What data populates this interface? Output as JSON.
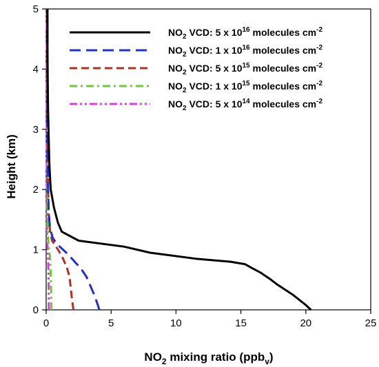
{
  "chart_data": {
    "type": "line",
    "xlabel": {
      "base": "NO",
      "sub": "2",
      "rest": " mixing ratio (ppb",
      "unit_sub": "v",
      "close": ")"
    },
    "ylabel": "Height (km)",
    "xlim": [
      0,
      25
    ],
    "ylim": [
      0,
      5
    ],
    "xticks": [
      0,
      5,
      10,
      15,
      20,
      25
    ],
    "yticks": [
      0,
      1,
      2,
      3,
      4,
      5
    ],
    "grid": false,
    "legend_position": "top-right",
    "series": [
      {
        "name": {
          "prefix": "NO",
          "sub": "2",
          "mid": " VCD: 5 x 10",
          "exp": "16",
          "suffix": " molecules cm",
          "suffix_exp": "-2"
        },
        "color": "#000000",
        "dash": "solid",
        "x": [
          20.4,
          20.0,
          19.0,
          17.8,
          17.2,
          16.5,
          15.8,
          15.3,
          14.2,
          11.5,
          8.0,
          6.0,
          2.5,
          1.2,
          0.9,
          0.6,
          0.35,
          0.25,
          0.2,
          0.15,
          0.12,
          0.1,
          0.1
        ],
        "y": [
          0.0,
          0.08,
          0.25,
          0.42,
          0.52,
          0.62,
          0.7,
          0.76,
          0.8,
          0.85,
          0.95,
          1.05,
          1.15,
          1.3,
          1.45,
          1.7,
          2.0,
          2.4,
          2.8,
          3.3,
          3.8,
          4.4,
          5.0
        ]
      },
      {
        "name": {
          "prefix": "NO",
          "sub": "2",
          "mid": " VCD: 1 x 10",
          "exp": "16",
          "suffix": " molecules cm",
          "suffix_exp": "-2"
        },
        "color": "#1f2fd6",
        "dash": "long-dash",
        "x": [
          4.1,
          3.95,
          3.7,
          3.4,
          3.1,
          2.7,
          2.2,
          1.7,
          1.2,
          0.8,
          0.5,
          0.3,
          0.2,
          0.15,
          0.1,
          0.1
        ],
        "y": [
          0.0,
          0.1,
          0.25,
          0.4,
          0.55,
          0.68,
          0.8,
          0.92,
          1.02,
          1.1,
          1.2,
          1.35,
          1.6,
          2.0,
          3.0,
          5.0
        ]
      },
      {
        "name": {
          "prefix": "NO",
          "sub": "2",
          "mid": " VCD: 5 x 10",
          "exp": "15",
          "suffix": " molecules cm",
          "suffix_exp": "-2"
        },
        "color": "#b1301f",
        "dash": "dash",
        "x": [
          2.1,
          2.0,
          1.9,
          1.8,
          1.6,
          1.3,
          1.0,
          0.7,
          0.45,
          0.3,
          0.2,
          0.15,
          0.1,
          0.1
        ],
        "y": [
          0.0,
          0.15,
          0.35,
          0.55,
          0.7,
          0.85,
          0.97,
          1.07,
          1.15,
          1.3,
          1.6,
          2.0,
          3.0,
          5.0
        ]
      },
      {
        "name": {
          "prefix": "NO",
          "sub": "2",
          "mid": " VCD: 1 x 10",
          "exp": "15",
          "suffix": " molecules cm",
          "suffix_exp": "-2"
        },
        "color": "#5fd12a",
        "dash": "dash-dot",
        "x": [
          0.4,
          0.39,
          0.37,
          0.35,
          0.32,
          0.28,
          0.22,
          0.16,
          0.12,
          0.1,
          0.1
        ],
        "y": [
          0.0,
          0.2,
          0.4,
          0.6,
          0.75,
          0.9,
          1.02,
          1.15,
          1.5,
          2.5,
          5.0
        ]
      },
      {
        "name": {
          "prefix": "NO",
          "sub": "2",
          "mid": " VCD: 5 x 10",
          "exp": "14",
          "suffix": " molecules cm",
          "suffix_exp": "-2"
        },
        "color": "#e03ae8",
        "dash": "dash-dot-dot",
        "x": [
          0.2,
          0.2,
          0.19,
          0.18,
          0.16,
          0.14,
          0.11,
          0.08,
          0.06,
          0.05,
          0.05
        ],
        "y": [
          0.0,
          0.2,
          0.4,
          0.6,
          0.75,
          0.9,
          1.02,
          1.15,
          1.5,
          2.5,
          5.0
        ]
      }
    ]
  }
}
